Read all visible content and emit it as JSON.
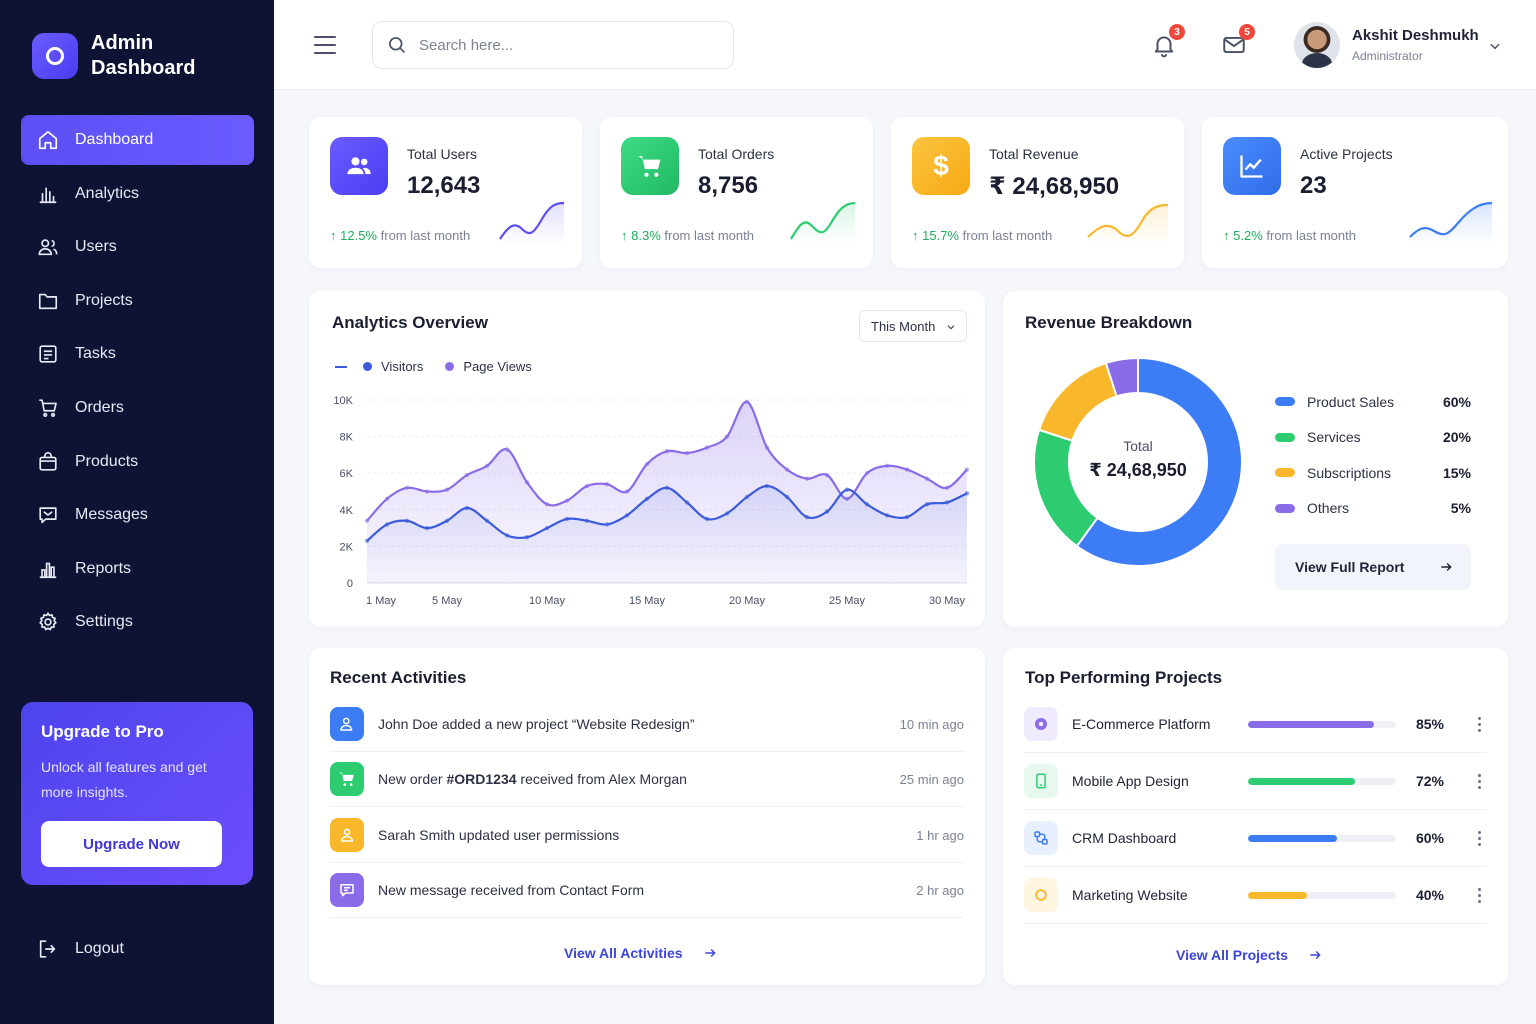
{
  "brand": {
    "title": "Admin Dashboard"
  },
  "sidebar": {
    "items": [
      {
        "label": "Dashboard",
        "icon": "home-icon"
      },
      {
        "label": "Analytics",
        "icon": "bar-chart-icon"
      },
      {
        "label": "Users",
        "icon": "users-icon"
      },
      {
        "label": "Projects",
        "icon": "folder-icon"
      },
      {
        "label": "Tasks",
        "icon": "tasks-icon"
      },
      {
        "label": "Orders",
        "icon": "cart-icon"
      },
      {
        "label": "Products",
        "icon": "bag-icon"
      },
      {
        "label": "Messages",
        "icon": "message-icon"
      },
      {
        "label": "Reports",
        "icon": "report-icon"
      },
      {
        "label": "Settings",
        "icon": "gear-icon"
      }
    ],
    "upgrade": {
      "title": "Upgrade to Pro",
      "text": "Unlock all features and get more insights.",
      "button": "Upgrade Now"
    },
    "logout": "Logout"
  },
  "topbar": {
    "search_placeholder": "Search here...",
    "notifications_count": "3",
    "messages_count": "5",
    "user_name": "Akshit Deshmukh",
    "user_role": "Administrator"
  },
  "stats": [
    {
      "label": "Total Users",
      "value": "12,643",
      "change": "12.5%",
      "change_text": "from last month",
      "color": "#5b4ff5",
      "spark": "#5b4ff5"
    },
    {
      "label": "Total Orders",
      "value": "8,756",
      "change": "8.3%",
      "change_text": "from last month",
      "color": "#2ecc71",
      "spark": "#2ecc71"
    },
    {
      "label": "Total Revenue",
      "value": "₹ 24,68,950",
      "change": "15.7%",
      "change_text": "from last month",
      "color": "#f9b82b",
      "spark": "#f9b82b"
    },
    {
      "label": "Active Projects",
      "value": "23",
      "change": "5.2%",
      "change_text": "from last month",
      "color": "#3c7cf5",
      "spark": "#3c7cf5"
    }
  ],
  "analytics": {
    "title": "Analytics Overview",
    "range_select": "This Month",
    "legend": [
      "Visitors",
      "Page Views"
    ],
    "chart_data": {
      "type": "line",
      "x": [
        1,
        2,
        3,
        4,
        5,
        6,
        7,
        8,
        9,
        10,
        11,
        12,
        13,
        14,
        15,
        16,
        17,
        18,
        19,
        20,
        21,
        22,
        23,
        24,
        25,
        26,
        27,
        28,
        29,
        30,
        31
      ],
      "x_tick_labels": [
        "1 May",
        "5 May",
        "10 May",
        "15 May",
        "20 May",
        "25 May",
        "30 May"
      ],
      "x_tick_positions": [
        1,
        5,
        10,
        15,
        20,
        25,
        30
      ],
      "y_tick_labels": [
        "0",
        "2K",
        "4K",
        "6K",
        "8K",
        "10K"
      ],
      "ylim": [
        0,
        10000
      ],
      "series": [
        {
          "name": "Visitors",
          "color": "#3b5bdb",
          "values": [
            2300,
            3200,
            3400,
            3000,
            3400,
            4100,
            3400,
            2600,
            2500,
            3000,
            3500,
            3400,
            3200,
            3700,
            4600,
            5200,
            4400,
            3500,
            3800,
            4700,
            5300,
            4700,
            3600,
            3900,
            5100,
            4300,
            3700,
            3600,
            4300,
            4400,
            4900
          ]
        },
        {
          "name": "Page Views",
          "color": "#8a6be8",
          "values": [
            3400,
            4600,
            5200,
            5000,
            5100,
            5900,
            6400,
            7300,
            5500,
            4300,
            4500,
            5300,
            5400,
            5000,
            6500,
            7200,
            7100,
            7400,
            8000,
            9900,
            7400,
            6200,
            5700,
            5900,
            4600,
            6000,
            6400,
            6200,
            5700,
            5200,
            6200
          ]
        }
      ]
    }
  },
  "revenue": {
    "title": "Revenue Breakdown",
    "center_label": "Total",
    "center_value": "₹ 24,68,950",
    "button": "View Full Report",
    "chart_data": {
      "type": "pie",
      "categories": [
        "Product Sales",
        "Services",
        "Subscriptions",
        "Others"
      ],
      "values": [
        60,
        20,
        15,
        5
      ],
      "labels": [
        "60%",
        "20%",
        "15%",
        "5%"
      ],
      "colors": [
        "#3c7cf5",
        "#2ecc71",
        "#f9b82b",
        "#8a6be8"
      ]
    }
  },
  "activities": {
    "title": "Recent Activities",
    "items": [
      {
        "pre": "John Doe added a new project “Website Redesign”",
        "bold": "",
        "post": "",
        "time": "10 min ago",
        "color": "#3c7cf5",
        "icon": "user-add-icon"
      },
      {
        "pre": "New order ",
        "bold": "#ORD1234",
        "post": " received from Alex Morgan",
        "time": "25 min ago",
        "color": "#2ecc71",
        "icon": "cart-icon"
      },
      {
        "pre": "Sarah Smith updated user permissions",
        "bold": "",
        "post": "",
        "time": "1 hr ago",
        "color": "#f9b82b",
        "icon": "user-icon"
      },
      {
        "pre": "New message received from Contact Form",
        "bold": "",
        "post": "",
        "time": "2 hr ago",
        "color": "#8a6be8",
        "icon": "message-icon"
      }
    ],
    "view_all": "View All Activities"
  },
  "projects": {
    "title": "Top Performing Projects",
    "items": [
      {
        "name": "E-Commerce Platform",
        "pct": "85%",
        "value": 0.85,
        "color": "#8a6be8",
        "icon": "globe-icon"
      },
      {
        "name": "Mobile App Design",
        "pct": "72%",
        "value": 0.72,
        "color": "#2ecc71",
        "icon": "mobile-icon"
      },
      {
        "name": "CRM Dashboard",
        "pct": "60%",
        "value": 0.6,
        "color": "#3c7cf5",
        "icon": "crm-icon"
      },
      {
        "name": "Marketing Website",
        "pct": "40%",
        "value": 0.4,
        "color": "#f9b82b",
        "icon": "target-icon"
      }
    ],
    "view_all": "View All Projects"
  }
}
